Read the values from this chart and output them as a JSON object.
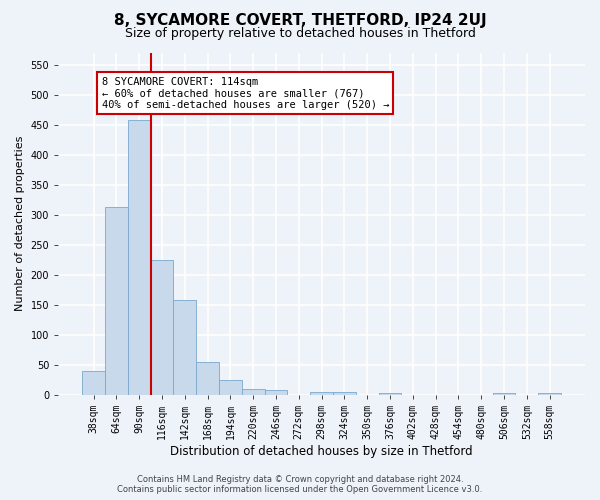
{
  "title": "8, SYCAMORE COVERT, THETFORD, IP24 2UJ",
  "subtitle": "Size of property relative to detached houses in Thetford",
  "xlabel": "Distribution of detached houses by size in Thetford",
  "ylabel": "Number of detached properties",
  "bar_categories": [
    "38sqm",
    "64sqm",
    "90sqm",
    "116sqm",
    "142sqm",
    "168sqm",
    "194sqm",
    "220sqm",
    "246sqm",
    "272sqm",
    "298sqm",
    "324sqm",
    "350sqm",
    "376sqm",
    "402sqm",
    "428sqm",
    "454sqm",
    "480sqm",
    "506sqm",
    "532sqm",
    "558sqm"
  ],
  "bar_values": [
    40,
    312,
    458,
    225,
    157,
    55,
    25,
    10,
    8,
    0,
    5,
    5,
    0,
    3,
    0,
    0,
    0,
    0,
    3,
    0,
    3
  ],
  "bar_color": "#c9d9ec",
  "bar_edge_color": "#7aa8cc",
  "vline_x": 2.5,
  "vline_color": "#cc0000",
  "annotation_text": "8 SYCAMORE COVERT: 114sqm\n← 60% of detached houses are smaller (767)\n40% of semi-detached houses are larger (520) →",
  "annotation_box_facecolor": "#ffffff",
  "annotation_box_edgecolor": "#cc0000",
  "footer_line1": "Contains HM Land Registry data © Crown copyright and database right 2024.",
  "footer_line2": "Contains public sector information licensed under the Open Government Licence v3.0.",
  "ylim": [
    0,
    570
  ],
  "yticks": [
    0,
    50,
    100,
    150,
    200,
    250,
    300,
    350,
    400,
    450,
    500,
    550
  ],
  "background_color": "#eef2f9",
  "grid_color": "#ffffff",
  "title_fontsize": 11,
  "subtitle_fontsize": 9,
  "tick_fontsize": 7,
  "ylabel_fontsize": 8,
  "xlabel_fontsize": 8.5,
  "footer_fontsize": 6,
  "annotation_fontsize": 7.5
}
